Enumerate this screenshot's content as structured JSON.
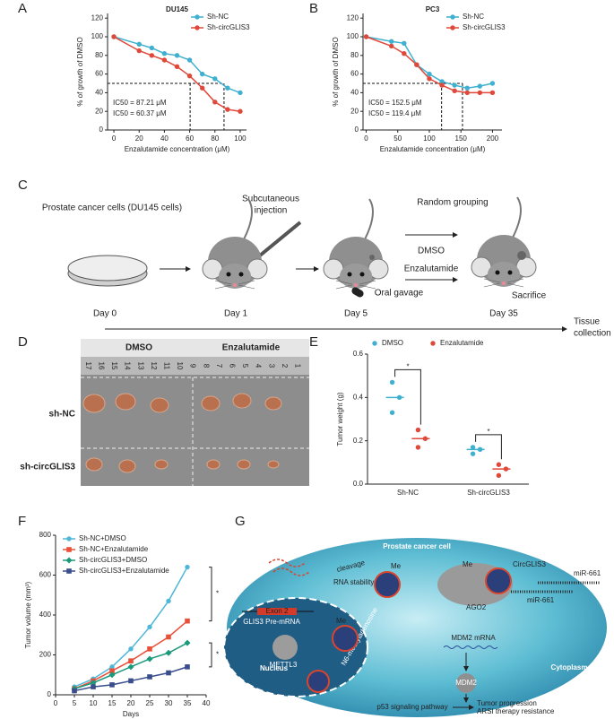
{
  "chart_data": [
    {
      "type": "line",
      "title": "DU145",
      "xlabel": "Enzalutamide concentration (μM)",
      "ylabel": "% of growth of DMSO",
      "x": [
        0,
        20,
        30,
        40,
        50,
        60,
        70,
        80,
        90,
        100
      ],
      "xlim": [
        -5,
        105
      ],
      "xticks": [
        0,
        20,
        40,
        60,
        80,
        100
      ],
      "ylim": [
        0,
        125
      ],
      "yticks": [
        0,
        20,
        40,
        60,
        80,
        100,
        120
      ],
      "legend": "upper right",
      "series": [
        {
          "name": "Sh-NC",
          "color": "#3fb0cf",
          "marker": "circle",
          "values": [
            100,
            92,
            88,
            82,
            80,
            75,
            60,
            55,
            45,
            40
          ]
        },
        {
          "name": "Sh-circGLIS3",
          "color": "#e0483a",
          "marker": "circle",
          "values": [
            100,
            85,
            80,
            75,
            68,
            58,
            45,
            30,
            22,
            20
          ]
        }
      ],
      "reference": {
        "y": 50,
        "x": [
          87.21,
          60.37
        ]
      },
      "annotations": [
        {
          "text": "IC50 = 87.21 μM",
          "color": "#3fb0cf"
        },
        {
          "text": "IC50 = 60.37 μM",
          "color": "#e0483a"
        }
      ]
    },
    {
      "type": "line",
      "title": "PC3",
      "xlabel": "Enzalutamide concentration (μM)",
      "ylabel": "% of growth of DMSO",
      "x": [
        0,
        40,
        60,
        80,
        100,
        120,
        140,
        160,
        180,
        200
      ],
      "xlim": [
        -5,
        215
      ],
      "xticks": [
        0,
        50,
        100,
        150,
        200
      ],
      "ylim": [
        0,
        125
      ],
      "yticks": [
        0,
        20,
        40,
        60,
        80,
        100,
        120
      ],
      "legend": "upper right",
      "series": [
        {
          "name": "Sh-NC",
          "color": "#3fb0cf",
          "marker": "circle",
          "values": [
            100,
            95,
            93,
            70,
            60,
            52,
            48,
            45,
            47,
            50
          ]
        },
        {
          "name": "Sh-circGLIS3",
          "color": "#e0483a",
          "marker": "circle",
          "values": [
            100,
            90,
            82,
            70,
            55,
            48,
            42,
            40,
            40,
            40
          ]
        }
      ],
      "reference": {
        "y": 50,
        "x": [
          152.5,
          119.4
        ]
      },
      "annotations": [
        {
          "text": "IC50 = 152.5 μM",
          "color": "#3fb0cf"
        },
        {
          "text": "IC50 = 119.4 μM",
          "color": "#e0483a"
        }
      ]
    },
    {
      "type": "strip",
      "ylabel": "Tumor weight (g)",
      "categories": [
        "Sh-NC",
        "Sh-circGLIS3"
      ],
      "ylim": [
        0,
        0.6
      ],
      "yticks": [
        {
          "value": 0,
          "label": "0.0"
        },
        0.2,
        0.4,
        0.6
      ],
      "legend": "top",
      "series": [
        {
          "name": "DMSO",
          "color": "#3fb0cf",
          "values": [
            [
              0.47,
              0.4,
              0.33
            ],
            [
              0.17,
              0.16,
              0.14
            ]
          ],
          "means": [
            0.4,
            0.16
          ]
        },
        {
          "name": "Enzalutamide",
          "color": "#e0483a",
          "values": [
            [
              0.25,
              0.21,
              0.17
            ],
            [
              0.09,
              0.07,
              0.04
            ]
          ],
          "means": [
            0.21,
            0.07
          ]
        }
      ],
      "significance": [
        "*",
        "*"
      ]
    },
    {
      "type": "line",
      "xlabel": "Days",
      "ylabel": "Tumor volume (mm³)",
      "x": [
        5,
        10,
        15,
        20,
        25,
        30,
        35
      ],
      "xlim": [
        0,
        40
      ],
      "xticks": [
        0,
        5,
        10,
        15,
        20,
        25,
        30,
        35,
        40
      ],
      "ylim": [
        0,
        800
      ],
      "yticks": [
        0,
        200,
        400,
        600,
        800
      ],
      "legend": "upper left",
      "series": [
        {
          "name": "Sh-NC+DMSO",
          "color": "#4fb8d8",
          "marker": "circle",
          "values": [
            40,
            80,
            140,
            230,
            340,
            470,
            640
          ]
        },
        {
          "name": "Sh-NC+Enzalutamide",
          "color": "#e8503a",
          "marker": "square",
          "values": [
            30,
            70,
            120,
            170,
            230,
            290,
            370
          ]
        },
        {
          "name": "Sh-circGLIS3+DMSO",
          "color": "#1a9a7a",
          "marker": "diamond",
          "values": [
            30,
            60,
            100,
            140,
            180,
            210,
            260
          ]
        },
        {
          "name": "Sh-circGLIS3+Enzalutamide",
          "color": "#3a4e8c",
          "marker": "square",
          "values": [
            20,
            40,
            50,
            70,
            90,
            110,
            140
          ]
        }
      ],
      "significance": [
        "*",
        "*"
      ]
    }
  ],
  "panels": [
    "A",
    "B",
    "C",
    "D",
    "E",
    "F",
    "G"
  ],
  "protocol": {
    "cells": "Prostate cancer cells (DU145 cells)",
    "injection": [
      "Subcutaneous",
      "injection"
    ],
    "grouping": "Random grouping",
    "dmso": "DMSO",
    "enzalutamide": "Enzalutamide",
    "gavage": "Oral gavage",
    "sacrifice": "Sacrifice",
    "days": [
      "Day 0",
      "Day 1",
      "Day 5",
      "Day 35"
    ],
    "end": [
      "Tissue",
      "collection"
    ]
  },
  "tumor_photo": {
    "columns": [
      "DMSO",
      "Enzalutamide"
    ],
    "rows": [
      "sh-NC",
      "sh-circGLIS3"
    ],
    "ruler": [
      "17",
      "16",
      "15",
      "14",
      "13",
      "12",
      "11",
      "10",
      "9",
      "8",
      "7",
      "6",
      "5",
      "4",
      "3",
      "2",
      "1"
    ]
  },
  "mechanism": {
    "title": "Prostate cancer cell",
    "nucleus": "Nucleus",
    "cytoplasm": "Cytoplasm",
    "exon": "Exon 2",
    "premrna": "GLIS3 Pre-mRNA",
    "mettl3": "METTL3",
    "circ_nucleus": "CircGLIS3",
    "m6a": "N6-methyladenosine",
    "me": [
      "Me",
      "Me",
      "Me"
    ],
    "cleavage": "cleavage",
    "stability": "RNA stability",
    "ago2": "AGO2",
    "circ_cyto": "CircGLIS3",
    "mir": [
      "miR-661",
      "miR-661"
    ],
    "mdm2_mrna": "MDM2 mRNA",
    "mdm2": "MDM2",
    "p53": "p53 signaling pathway",
    "outcomes": [
      "Tumor progression",
      "ARSI therapy resistance"
    ]
  }
}
